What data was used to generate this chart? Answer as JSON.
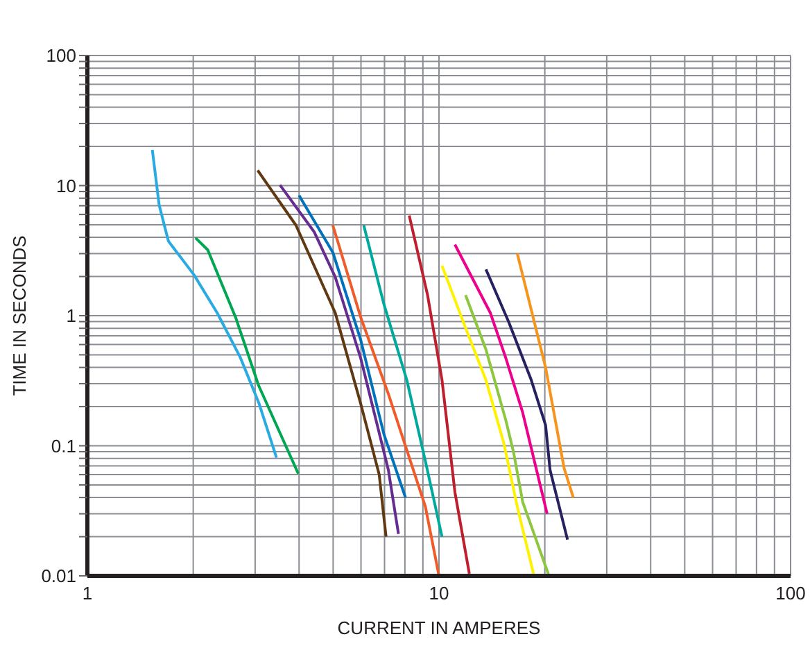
{
  "chart_data": {
    "type": "line",
    "xlabel": "CURRENT IN AMPERES",
    "ylabel": "TIME IN SECONDS",
    "log": "xy",
    "grid": true,
    "marker": "none",
    "line_style": "solid",
    "xlim": [
      1,
      100
    ],
    "ylim": [
      0.01,
      100
    ],
    "xticks": [
      1,
      {
        "value": 2,
        "label": null
      },
      {
        "value": 3,
        "label": null
      },
      {
        "value": 4,
        "label": null
      },
      {
        "value": 5,
        "label": null
      },
      {
        "value": 6,
        "label": null
      },
      {
        "value": 7,
        "label": null
      },
      {
        "value": 8,
        "label": null
      },
      {
        "value": 9,
        "label": null
      },
      10,
      {
        "value": 20,
        "label": null
      },
      {
        "value": 30,
        "label": null
      },
      {
        "value": 40,
        "label": null
      },
      {
        "value": 50,
        "label": null
      },
      {
        "value": 60,
        "label": null
      },
      {
        "value": 70,
        "label": null
      },
      {
        "value": 80,
        "label": null
      },
      {
        "value": 90,
        "label": null
      },
      100
    ],
    "yticks": [
      0.01,
      {
        "value": 0.02,
        "label": null
      },
      {
        "value": 0.03,
        "label": null
      },
      {
        "value": 0.04,
        "label": null
      },
      {
        "value": 0.05,
        "label": null
      },
      {
        "value": 0.06,
        "label": null
      },
      {
        "value": 0.07,
        "label": null
      },
      {
        "value": 0.08,
        "label": null
      },
      {
        "value": 0.09,
        "label": null
      },
      0.1,
      {
        "value": 0.2,
        "label": null
      },
      {
        "value": 0.3,
        "label": null
      },
      {
        "value": 0.4,
        "label": null
      },
      {
        "value": 0.5,
        "label": null
      },
      {
        "value": 0.6,
        "label": null
      },
      {
        "value": 0.7,
        "label": null
      },
      {
        "value": 0.8,
        "label": null
      },
      {
        "value": 0.9,
        "label": null
      },
      1,
      {
        "value": 2,
        "label": null
      },
      {
        "value": 3,
        "label": null
      },
      {
        "value": 4,
        "label": null
      },
      {
        "value": 5,
        "label": null
      },
      {
        "value": 6,
        "label": null
      },
      {
        "value": 7,
        "label": null
      },
      {
        "value": 8,
        "label": null
      },
      {
        "value": 9,
        "label": null
      },
      10,
      {
        "value": 20,
        "label": null
      },
      {
        "value": 30,
        "label": null
      },
      {
        "value": 40,
        "label": null
      },
      {
        "value": 50,
        "label": null
      },
      {
        "value": 60,
        "label": null
      },
      {
        "value": 70,
        "label": null
      },
      {
        "value": 80,
        "label": null
      },
      {
        "value": 90,
        "label": null
      },
      100
    ],
    "series": [
      {
        "color": "#29abe2",
        "x": [
          1.53,
          1.6,
          1.7,
          2.01,
          2.34,
          2.72,
          3.08,
          3.45
        ],
        "values": [
          18.8,
          7.1,
          3.74,
          2.06,
          1.05,
          0.48,
          0.21,
          0.081
        ]
      },
      {
        "color": "#00a651",
        "x": [
          2.03,
          2.2,
          2.64,
          3.07,
          3.98
        ],
        "values": [
          3.96,
          3.2,
          0.97,
          0.29,
          0.061
        ]
      },
      {
        "color": "#603913",
        "x": [
          3.05,
          3.92,
          5.07,
          5.99,
          6.76,
          7.07
        ],
        "values": [
          13.1,
          4.95,
          1.05,
          0.21,
          0.06,
          0.02
        ]
      },
      {
        "color": "#662d91",
        "x": [
          3.53,
          4.42,
          5.07,
          5.99,
          7.18,
          7.67
        ],
        "values": [
          10.1,
          4.39,
          1.98,
          0.47,
          0.065,
          0.021
        ]
      },
      {
        "color": "#0072bc",
        "x": [
          4.0,
          4.99,
          5.99,
          6.97,
          8.03
        ],
        "values": [
          8.4,
          3.07,
          0.65,
          0.123,
          0.04
        ]
      },
      {
        "color": "#f15a29",
        "x": [
          4.99,
          5.99,
          7.18,
          9.15,
          10.0
        ],
        "values": [
          4.95,
          0.97,
          0.25,
          0.034,
          0.01
        ]
      },
      {
        "color": "#00a99d",
        "x": [
          6.11,
          6.97,
          8.1,
          9.15,
          10.2
        ],
        "values": [
          4.95,
          1.23,
          0.32,
          0.076,
          0.02
        ]
      },
      {
        "color": "#be1e2d",
        "x": [
          8.23,
          9.28,
          10.2,
          11.1,
          12.2
        ],
        "values": [
          5.89,
          1.44,
          0.32,
          0.044,
          0.0104
        ]
      },
      {
        "color": "#fff200",
        "x": [
          10.2,
          12.0,
          13.6,
          15.3,
          16.7,
          18.6
        ],
        "values": [
          2.42,
          0.76,
          0.32,
          0.104,
          0.034,
          0.0102
        ]
      },
      {
        "color": "#8dc63f",
        "x": [
          11.9,
          13.6,
          15.5,
          16.3,
          17.3,
          20.5
        ],
        "values": [
          1.44,
          0.55,
          0.156,
          0.089,
          0.037,
          0.0102
        ]
      },
      {
        "color": "#ec008c",
        "x": [
          11.1,
          14.0,
          15.5,
          17.3,
          20.3
        ],
        "values": [
          3.52,
          1.05,
          0.47,
          0.18,
          0.03
        ]
      },
      {
        "color": "#262262",
        "x": [
          13.6,
          15.8,
          18.3,
          20.1,
          20.7,
          23.2
        ],
        "values": [
          2.27,
          0.89,
          0.32,
          0.144,
          0.065,
          0.019
        ]
      },
      {
        "color": "#f7941d",
        "x": [
          16.7,
          20.1,
          22.7,
          24.1
        ],
        "values": [
          3.0,
          0.4,
          0.067,
          0.04
        ]
      }
    ]
  }
}
